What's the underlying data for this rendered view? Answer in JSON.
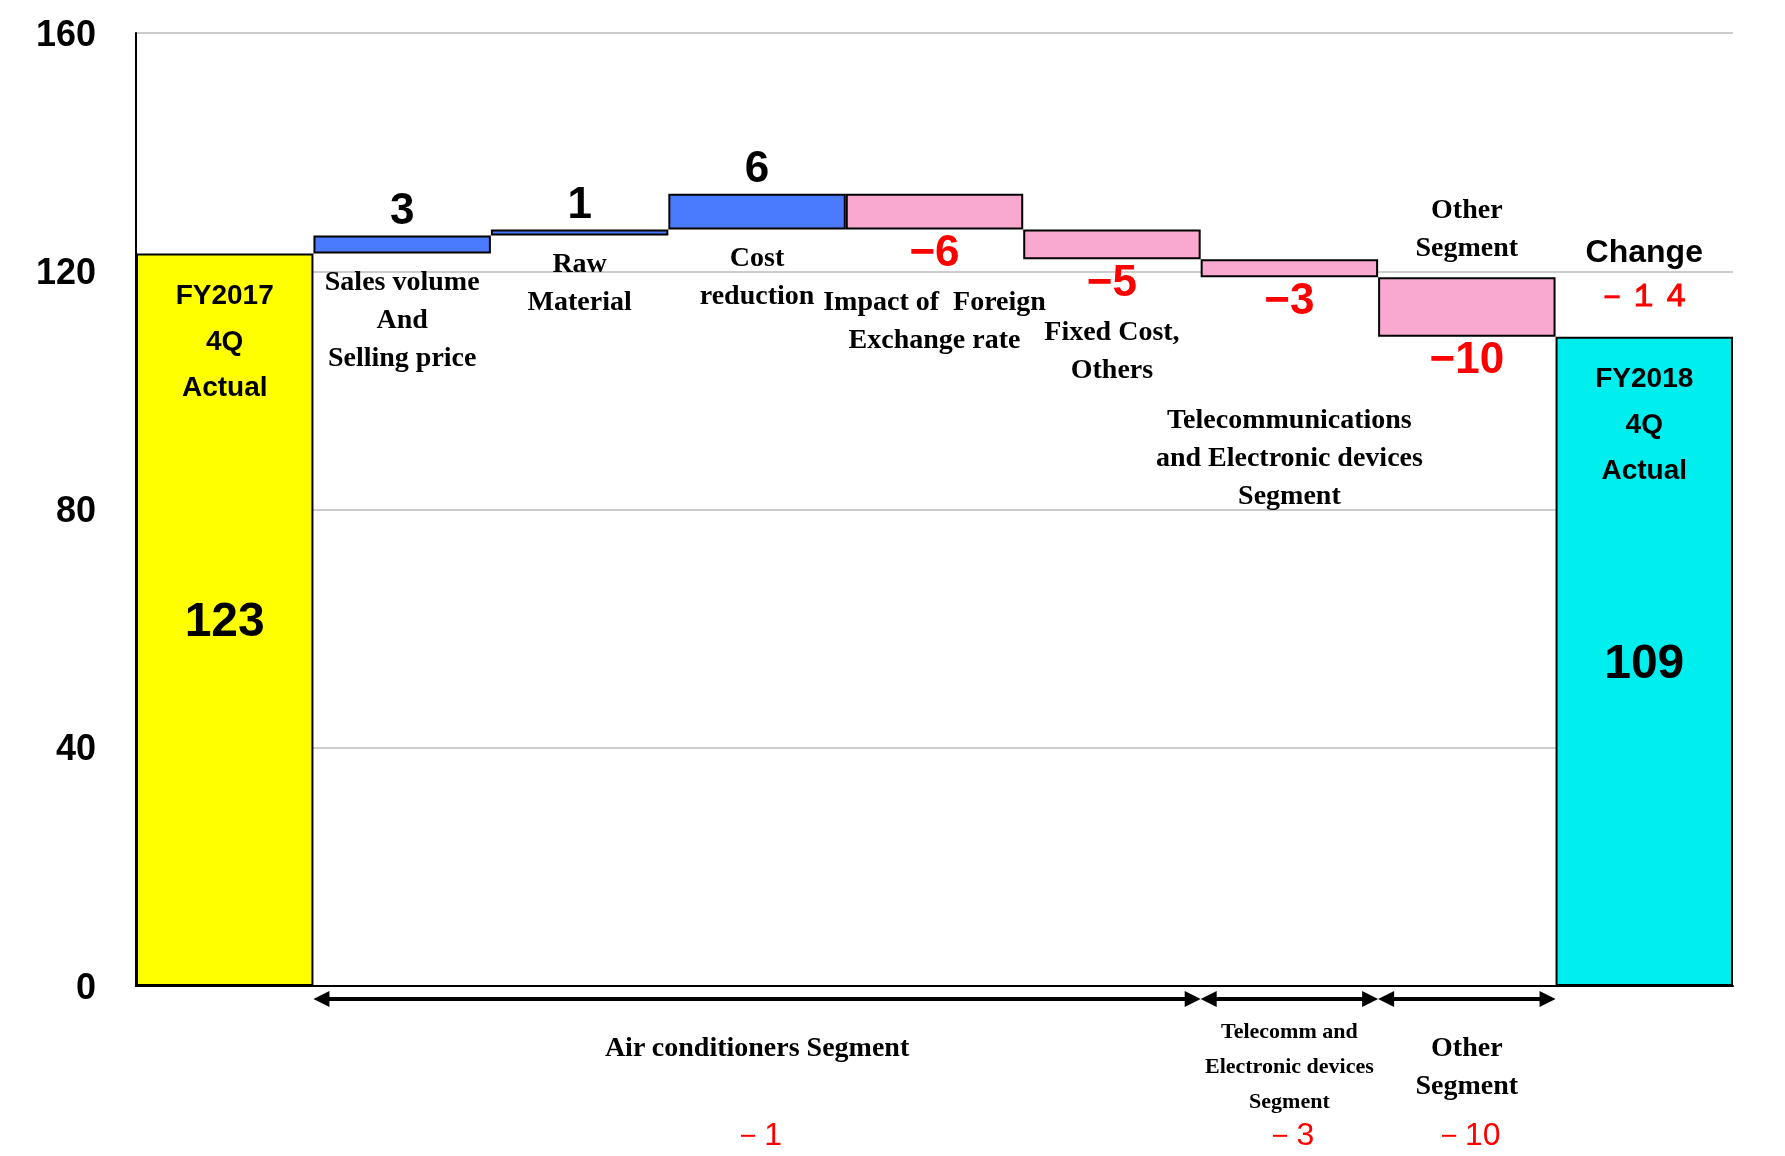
{
  "chart_data": {
    "type": "bar",
    "categories": [
      "FY2017\n4Q\nActual",
      "Sales volume\nAnd\nSelling price",
      "Raw\nMaterial",
      "Cost\nreduction",
      "Impact of  Foreign\nExchange rate",
      "Fixed Cost,\nOthers",
      "Telecommunications\nand Electronic devices\nSegment",
      "Other\nSegment",
      "FY2018\n4Q\nActual"
    ],
    "values": [
      123,
      3,
      1,
      6,
      -6,
      -5,
      -3,
      -10,
      109
    ],
    "base": [
      0,
      123,
      126,
      127,
      133,
      127,
      122,
      119,
      0
    ],
    "value_labels": [
      "123",
      "3",
      "1",
      "6",
      "−6",
      "−5",
      "−3",
      "−10",
      "109"
    ],
    "colors": [
      "#ffff00",
      "#4a7bff",
      "#4a7bff",
      "#4a7bff",
      "#f9a8d0",
      "#f9a8d0",
      "#f9a8d0",
      "#f9a8d0",
      "#00eeee"
    ],
    "ylim": [
      0,
      160
    ],
    "yticks": [
      0,
      40,
      80,
      120,
      160
    ],
    "grid": "y",
    "tick_labels": "y",
    "annotations": [
      "Change",
      "－１４",
      "Air conditioners Segment",
      "－1",
      "Telecomm and\nElectronic devices\nSegment",
      "－3",
      "Other\nSegment",
      "－10"
    ]
  }
}
